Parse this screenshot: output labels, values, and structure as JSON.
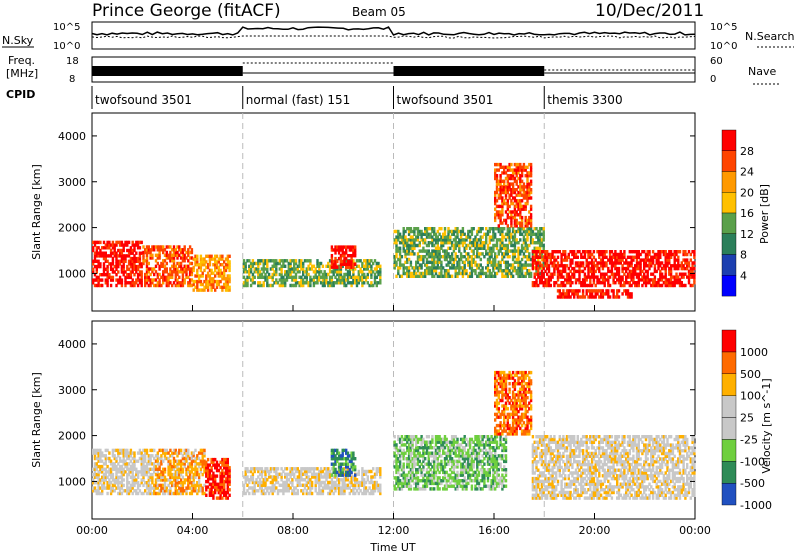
{
  "header": {
    "station": "Prince George (fitACF)",
    "beam": "Beam 05",
    "date": "10/Dec/2011"
  },
  "top_panels": {
    "nsky_label": "N.Sky",
    "nsky_ticks": [
      "10^5",
      "10^0"
    ],
    "nsearch_label": "N.Search",
    "nsearch_ticks": [
      "10^5",
      "10^0"
    ],
    "freq_label_1": "Freq.",
    "freq_label_2": "[MHz]",
    "freq_ticks": [
      "18",
      "8"
    ],
    "nave_label": "Nave",
    "nave_ticks": [
      "60",
      "0"
    ],
    "cpid_label": "CPID"
  },
  "cpid_segments": [
    {
      "label": "twofsound 3501",
      "start_hr": 0,
      "end_hr": 6
    },
    {
      "label": "normal (fast) 151",
      "start_hr": 6,
      "end_hr": 12
    },
    {
      "label": "twofsound 3501",
      "start_hr": 12,
      "end_hr": 18
    },
    {
      "label": "themis 3300",
      "start_hr": 18,
      "end_hr": 24
    }
  ],
  "colors": {
    "power": [
      "#0000ff",
      "#1c3fb0",
      "#2b7f5a",
      "#5aa04a",
      "#ffc000",
      "#ff9900",
      "#ff4400",
      "#ff0000"
    ],
    "velocity": [
      "#2050c0",
      "#2e8b57",
      "#6fcf3f",
      "#c8c8c8",
      "#c8c8c8",
      "#ffb000",
      "#ff6a00",
      "#ff0000"
    ]
  },
  "chart_data": [
    {
      "type": "heatmap",
      "panel": "power",
      "ylabel": "Slant Range [km]",
      "xlabel": "Time UT",
      "xlim": [
        0,
        24
      ],
      "ylim": [
        180,
        4500
      ],
      "x_ticks": [
        "00:00",
        "04:00",
        "08:00",
        "12:00",
        "16:00",
        "20:00",
        "00:00"
      ],
      "y_ticks": [
        1000,
        2000,
        3000,
        4000
      ],
      "colorbar_label": "Power [dB]",
      "colorbar_ticks": [
        "28",
        "24",
        "20",
        "16",
        "12",
        "8",
        "4"
      ],
      "regions": [
        {
          "t0": 0.0,
          "t1": 2.0,
          "r0": 700,
          "r1": 1700,
          "level": 7
        },
        {
          "t0": 2.0,
          "t1": 4.0,
          "r0": 700,
          "r1": 1600,
          "level": 6
        },
        {
          "t0": 4.0,
          "t1": 5.5,
          "r0": 600,
          "r1": 1400,
          "level": 5
        },
        {
          "t0": 6.0,
          "t1": 11.5,
          "r0": 700,
          "r1": 1300,
          "level": 3
        },
        {
          "t0": 9.5,
          "t1": 10.5,
          "r0": 1100,
          "r1": 1600,
          "level": 7
        },
        {
          "t0": 12.0,
          "t1": 18.0,
          "r0": 900,
          "r1": 2000,
          "level": 3
        },
        {
          "t0": 16.0,
          "t1": 17.5,
          "r0": 2000,
          "r1": 3400,
          "level": 6
        },
        {
          "t0": 17.5,
          "t1": 24.0,
          "r0": 700,
          "r1": 1500,
          "level": 7
        },
        {
          "t0": 18.5,
          "t1": 21.5,
          "r0": 450,
          "r1": 650,
          "level": 7
        }
      ]
    },
    {
      "type": "heatmap",
      "panel": "velocity",
      "ylabel": "Slant Range [km]",
      "xlabel": "Time UT",
      "xlim": [
        0,
        24
      ],
      "ylim": [
        180,
        4500
      ],
      "x_ticks": [
        "00:00",
        "04:00",
        "08:00",
        "12:00",
        "16:00",
        "20:00",
        "00:00"
      ],
      "y_ticks": [
        1000,
        2000,
        3000,
        4000
      ],
      "colorbar_label": "Velocity [m s^-1]",
      "colorbar_ticks": [
        "1000",
        "500",
        "100",
        "25",
        "-25",
        "-100",
        "-500",
        "-1000"
      ],
      "regions": [
        {
          "t0": 0.0,
          "t1": 2.5,
          "r0": 700,
          "r1": 1700,
          "level": 4
        },
        {
          "t0": 2.5,
          "t1": 4.5,
          "r0": 700,
          "r1": 1700,
          "level": 5
        },
        {
          "t0": 4.5,
          "t1": 5.5,
          "r0": 600,
          "r1": 1500,
          "level": 7
        },
        {
          "t0": 6.0,
          "t1": 11.5,
          "r0": 700,
          "r1": 1300,
          "level": 4
        },
        {
          "t0": 9.5,
          "t1": 10.5,
          "r0": 1100,
          "r1": 1700,
          "level": 1
        },
        {
          "t0": 12.0,
          "t1": 16.5,
          "r0": 800,
          "r1": 2000,
          "level": 2
        },
        {
          "t0": 16.0,
          "t1": 17.5,
          "r0": 2000,
          "r1": 3400,
          "level": 6
        },
        {
          "t0": 17.5,
          "t1": 24.0,
          "r0": 600,
          "r1": 2000,
          "level": 4
        }
      ]
    }
  ]
}
